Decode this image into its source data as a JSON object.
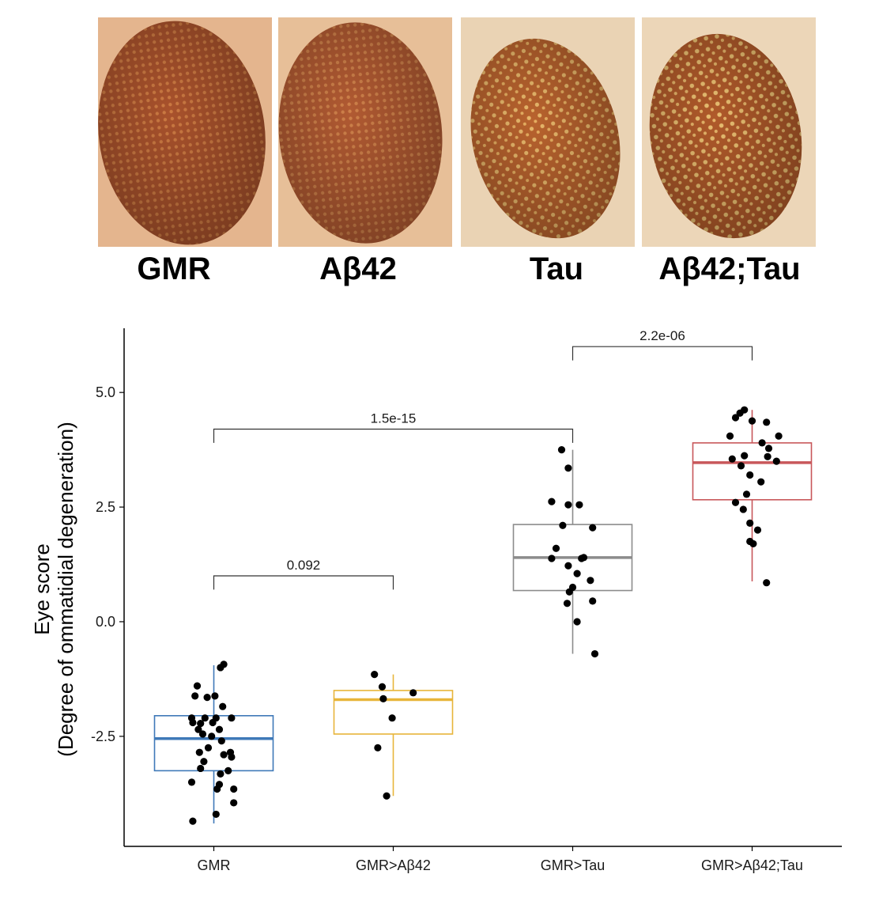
{
  "eye_panels": [
    {
      "label": "GMR",
      "type": "normal",
      "base": "#a9522c",
      "rim": "#e4b58e",
      "dots": "#d8874a"
    },
    {
      "label": "Aβ42",
      "type": "normal",
      "base": "#b15a32",
      "rim": "#e7bf98",
      "dots": "#dc9254"
    },
    {
      "label": "Tau",
      "type": "rough",
      "base": "#b9632e",
      "rim": "#ead3b4",
      "dots": "#f2c776"
    },
    {
      "label": "Aβ42;Tau",
      "type": "rough",
      "base": "#b05a2a",
      "rim": "#ecd6b8",
      "dots": "#f4d17e"
    }
  ],
  "chart_data": {
    "type": "box",
    "ylabel_line1": "Eye score",
    "ylabel_line2": "(Degree of ommatidial degeneration)",
    "ylim": [
      -4.9,
      6.4
    ],
    "yticks": [
      {
        "value": 5.0,
        "label": "5.0"
      },
      {
        "value": 2.5,
        "label": "2.5"
      },
      {
        "value": 0.0,
        "label": "0.0"
      },
      {
        "value": -2.5,
        "label": "-2.5"
      }
    ],
    "grid": false,
    "categories": [
      "GMR",
      "GMR>Aβ42",
      "GMR>Tau",
      "GMR>Aβ42;Tau"
    ],
    "groups": [
      {
        "category": "GMR",
        "color": "#3f79b8",
        "whisker_low": -4.4,
        "q1": -3.25,
        "median": -2.55,
        "q3": -2.05,
        "whisker_high": -0.95,
        "points": [
          [
            0.09,
            -0.93
          ],
          [
            0.06,
            -1.0
          ],
          [
            -0.15,
            -1.4
          ],
          [
            0.01,
            -1.62
          ],
          [
            -0.06,
            -1.65
          ],
          [
            -0.17,
            -1.62
          ],
          [
            0.08,
            -1.85
          ],
          [
            0.02,
            -2.1
          ],
          [
            -0.2,
            -2.1
          ],
          [
            -0.19,
            -2.2
          ],
          [
            -0.08,
            -2.1
          ],
          [
            -0.01,
            -2.2
          ],
          [
            -0.12,
            -2.22
          ],
          [
            -0.14,
            -2.35
          ],
          [
            -0.1,
            -2.45
          ],
          [
            0.05,
            -2.35
          ],
          [
            0.16,
            -2.1
          ],
          [
            -0.02,
            -2.5
          ],
          [
            0.07,
            -2.6
          ],
          [
            -0.05,
            -2.75
          ],
          [
            0.09,
            -2.9
          ],
          [
            0.15,
            -2.85
          ],
          [
            -0.13,
            -2.85
          ],
          [
            -0.09,
            -3.05
          ],
          [
            -0.12,
            -3.2
          ],
          [
            0.13,
            -3.25
          ],
          [
            0.06,
            -3.32
          ],
          [
            0.16,
            -2.95
          ],
          [
            0.05,
            -3.55
          ],
          [
            0.03,
            -3.65
          ],
          [
            -0.2,
            -3.5
          ],
          [
            0.18,
            -3.65
          ],
          [
            0.18,
            -3.95
          ],
          [
            0.02,
            -4.2
          ],
          [
            -0.19,
            -4.35
          ]
        ]
      },
      {
        "category": "GMR>Aβ42",
        "color": "#e7b53a",
        "whisker_low": -3.8,
        "q1": -2.45,
        "median": -1.7,
        "q3": -1.5,
        "whisker_high": -1.15,
        "points": [
          [
            -0.17,
            -1.15
          ],
          [
            -0.1,
            -1.42
          ],
          [
            -0.09,
            -1.68
          ],
          [
            0.18,
            -1.55
          ],
          [
            -0.01,
            -2.1
          ],
          [
            -0.14,
            -2.75
          ],
          [
            -0.06,
            -3.8
          ]
        ]
      },
      {
        "category": "GMR>Tau",
        "color": "#8c8c8c",
        "whisker_low": -0.7,
        "q1": 0.68,
        "median": 1.4,
        "q3": 2.12,
        "whisker_high": 3.75,
        "points": [
          [
            -0.1,
            3.75
          ],
          [
            -0.04,
            3.35
          ],
          [
            -0.19,
            2.62
          ],
          [
            -0.04,
            2.55
          ],
          [
            0.06,
            2.55
          ],
          [
            -0.09,
            2.1
          ],
          [
            -0.15,
            1.6
          ],
          [
            0.18,
            2.05
          ],
          [
            -0.19,
            1.38
          ],
          [
            -0.04,
            1.22
          ],
          [
            0.08,
            1.38
          ],
          [
            0.1,
            1.4
          ],
          [
            0.04,
            1.05
          ],
          [
            0.16,
            0.9
          ],
          [
            0.0,
            0.75
          ],
          [
            -0.03,
            0.65
          ],
          [
            0.18,
            0.45
          ],
          [
            -0.05,
            0.4
          ],
          [
            0.04,
            0.0
          ],
          [
            0.2,
            -0.7
          ]
        ]
      },
      {
        "category": "GMR>Aβ42;Tau",
        "color": "#c8575a",
        "whisker_low": 0.88,
        "q1": 2.66,
        "median": 3.47,
        "q3": 3.9,
        "whisker_high": 4.62,
        "points": [
          [
            -0.15,
            4.45
          ],
          [
            -0.07,
            4.62
          ],
          [
            -0.11,
            4.55
          ],
          [
            0.0,
            4.38
          ],
          [
            0.13,
            4.35
          ],
          [
            -0.2,
            4.05
          ],
          [
            0.24,
            4.05
          ],
          [
            0.09,
            3.9
          ],
          [
            0.15,
            3.78
          ],
          [
            -0.18,
            3.55
          ],
          [
            -0.07,
            3.62
          ],
          [
            0.14,
            3.6
          ],
          [
            0.22,
            3.5
          ],
          [
            -0.1,
            3.4
          ],
          [
            -0.02,
            3.2
          ],
          [
            0.08,
            3.05
          ],
          [
            -0.05,
            2.78
          ],
          [
            -0.15,
            2.6
          ],
          [
            -0.08,
            2.45
          ],
          [
            -0.02,
            2.15
          ],
          [
            0.05,
            2.0
          ],
          [
            -0.02,
            1.75
          ],
          [
            0.01,
            1.7
          ],
          [
            0.13,
            0.85
          ]
        ]
      }
    ],
    "comparisons": [
      {
        "from": 0,
        "to": 1,
        "label": "0.092",
        "y": 1.0,
        "tick_down": 0.3
      },
      {
        "from": 0,
        "to": 2,
        "label": "1.5e-15",
        "y": 4.2,
        "tick_down": 0.3
      },
      {
        "from": 2,
        "to": 3,
        "label": "2.2e-06",
        "y": 6.0,
        "tick_down": 0.3
      }
    ]
  }
}
